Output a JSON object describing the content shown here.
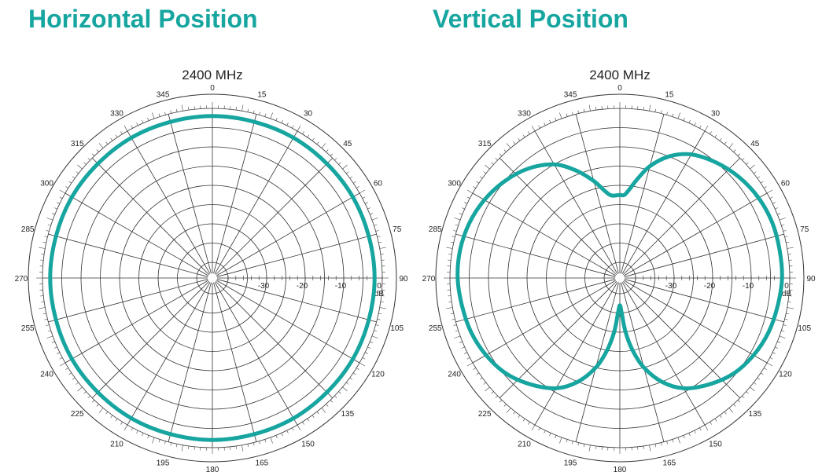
{
  "chart_data": [
    {
      "type": "polar-line",
      "title": "Horizontal Position",
      "subtitle": "2400 MHz",
      "angle_labels": [
        "0",
        "15",
        "30",
        "45",
        "60",
        "75",
        "90",
        "105",
        "120",
        "135",
        "150",
        "165",
        "180",
        "195",
        "210",
        "225",
        "240",
        "255",
        "270",
        "285",
        "300",
        "315",
        "330",
        "345"
      ],
      "radial_tick_labels": [
        "-30",
        "-20",
        "-10",
        "0"
      ],
      "radial_unit": "dB",
      "radial_range": [
        -40,
        0
      ],
      "series_color": "#17a5a0",
      "series": [
        {
          "points": [
            {
              "angle": 0,
              "db": -2
            },
            {
              "angle": 30,
              "db": -2
            },
            {
              "angle": 60,
              "db": -2
            },
            {
              "angle": 90,
              "db": -2
            },
            {
              "angle": 120,
              "db": -2
            },
            {
              "angle": 150,
              "db": -2
            },
            {
              "angle": 180,
              "db": -2
            },
            {
              "angle": 210,
              "db": -2
            },
            {
              "angle": 240,
              "db": -2
            },
            {
              "angle": 270,
              "db": -2
            },
            {
              "angle": 300,
              "db": -2
            },
            {
              "angle": 330,
              "db": -2
            },
            {
              "angle": 360,
              "db": -2
            }
          ]
        }
      ]
    },
    {
      "type": "polar-line",
      "title": "Vertical Position",
      "subtitle": "2400 MHz",
      "angle_labels": [
        "0",
        "15",
        "30",
        "45",
        "60",
        "75",
        "90",
        "105",
        "120",
        "135",
        "150",
        "165",
        "180",
        "195",
        "210",
        "225",
        "240",
        "255",
        "270",
        "285",
        "300",
        "315",
        "330",
        "345"
      ],
      "radial_tick_labels": [
        "-30",
        "-20",
        "-10",
        "0"
      ],
      "radial_unit": "dB",
      "radial_range": [
        -40,
        0
      ],
      "series_color": "#17a5a0",
      "series": [
        {
          "points": [
            {
              "angle": 0,
              "db": -22.5
            },
            {
              "angle": 3,
              "db": -22.5
            },
            {
              "angle": 6,
              "db": -21
            },
            {
              "angle": 10,
              "db": -18
            },
            {
              "angle": 15,
              "db": -14
            },
            {
              "angle": 22,
              "db": -10
            },
            {
              "angle": 30,
              "db": -7
            },
            {
              "angle": 40,
              "db": -5
            },
            {
              "angle": 50,
              "db": -3.5
            },
            {
              "angle": 60,
              "db": -2.5
            },
            {
              "angle": 70,
              "db": -2
            },
            {
              "angle": 80,
              "db": -2
            },
            {
              "angle": 90,
              "db": -2
            },
            {
              "angle": 100,
              "db": -2.5
            },
            {
              "angle": 110,
              "db": -3
            },
            {
              "angle": 120,
              "db": -4
            },
            {
              "angle": 130,
              "db": -5.5
            },
            {
              "angle": 140,
              "db": -8
            },
            {
              "angle": 150,
              "db": -11
            },
            {
              "angle": 158,
              "db": -15
            },
            {
              "angle": 165,
              "db": -20
            },
            {
              "angle": 170,
              "db": -25
            },
            {
              "angle": 174,
              "db": -30
            },
            {
              "angle": 177,
              "db": -35
            },
            {
              "angle": 180,
              "db": -37
            },
            {
              "angle": 183,
              "db": -35
            },
            {
              "angle": 186,
              "db": -30
            },
            {
              "angle": 190,
              "db": -25
            },
            {
              "angle": 195,
              "db": -20
            },
            {
              "angle": 202,
              "db": -15
            },
            {
              "angle": 210,
              "db": -11
            },
            {
              "angle": 220,
              "db": -8
            },
            {
              "angle": 230,
              "db": -5.5
            },
            {
              "angle": 240,
              "db": -4
            },
            {
              "angle": 250,
              "db": -3
            },
            {
              "angle": 260,
              "db": -2.5
            },
            {
              "angle": 270,
              "db": -2
            },
            {
              "angle": 280,
              "db": -2
            },
            {
              "angle": 290,
              "db": -2.5
            },
            {
              "angle": 300,
              "db": -3.5
            },
            {
              "angle": 310,
              "db": -5
            },
            {
              "angle": 320,
              "db": -7
            },
            {
              "angle": 330,
              "db": -10
            },
            {
              "angle": 338,
              "db": -14
            },
            {
              "angle": 345,
              "db": -18
            },
            {
              "angle": 350,
              "db": -21
            },
            {
              "angle": 354,
              "db": -22.5
            },
            {
              "angle": 360,
              "db": -22.5
            }
          ]
        }
      ]
    }
  ]
}
